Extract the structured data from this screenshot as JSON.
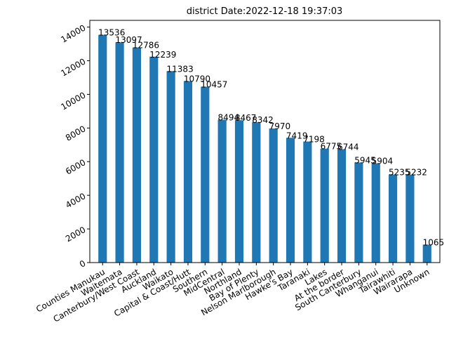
{
  "chart_data": {
    "type": "bar",
    "title": "district  Date:2022-12-18 19:37:03",
    "xlabel": "",
    "ylabel": "",
    "ylim": [
      0,
      14400
    ],
    "yticks": [
      0,
      2000,
      4000,
      6000,
      8000,
      10000,
      12000,
      14000
    ],
    "categories": [
      "Counties Manukau",
      "Waitemata",
      "Canterbury/West Coast",
      "Auckland",
      "Waikato",
      "Capital & Coast/Hutt",
      "Southern",
      "MidCentral",
      "Northland",
      "Bay of Plenty",
      "Nelson Marlborough",
      "Hawke's Bay",
      "Taranaki",
      "Lakes",
      "At the border",
      "South Canterbury",
      "Whanganui",
      "Tairawhiti",
      "Wairarapa",
      "Unknown"
    ],
    "values": [
      13536,
      13097,
      12786,
      12239,
      11383,
      10790,
      10457,
      8494,
      8467,
      8342,
      7970,
      7419,
      7198,
      6775,
      6744,
      5945,
      5904,
      5235,
      5232,
      1065
    ],
    "bar_color": "#1f77b4",
    "grid": false,
    "legend": "none"
  }
}
